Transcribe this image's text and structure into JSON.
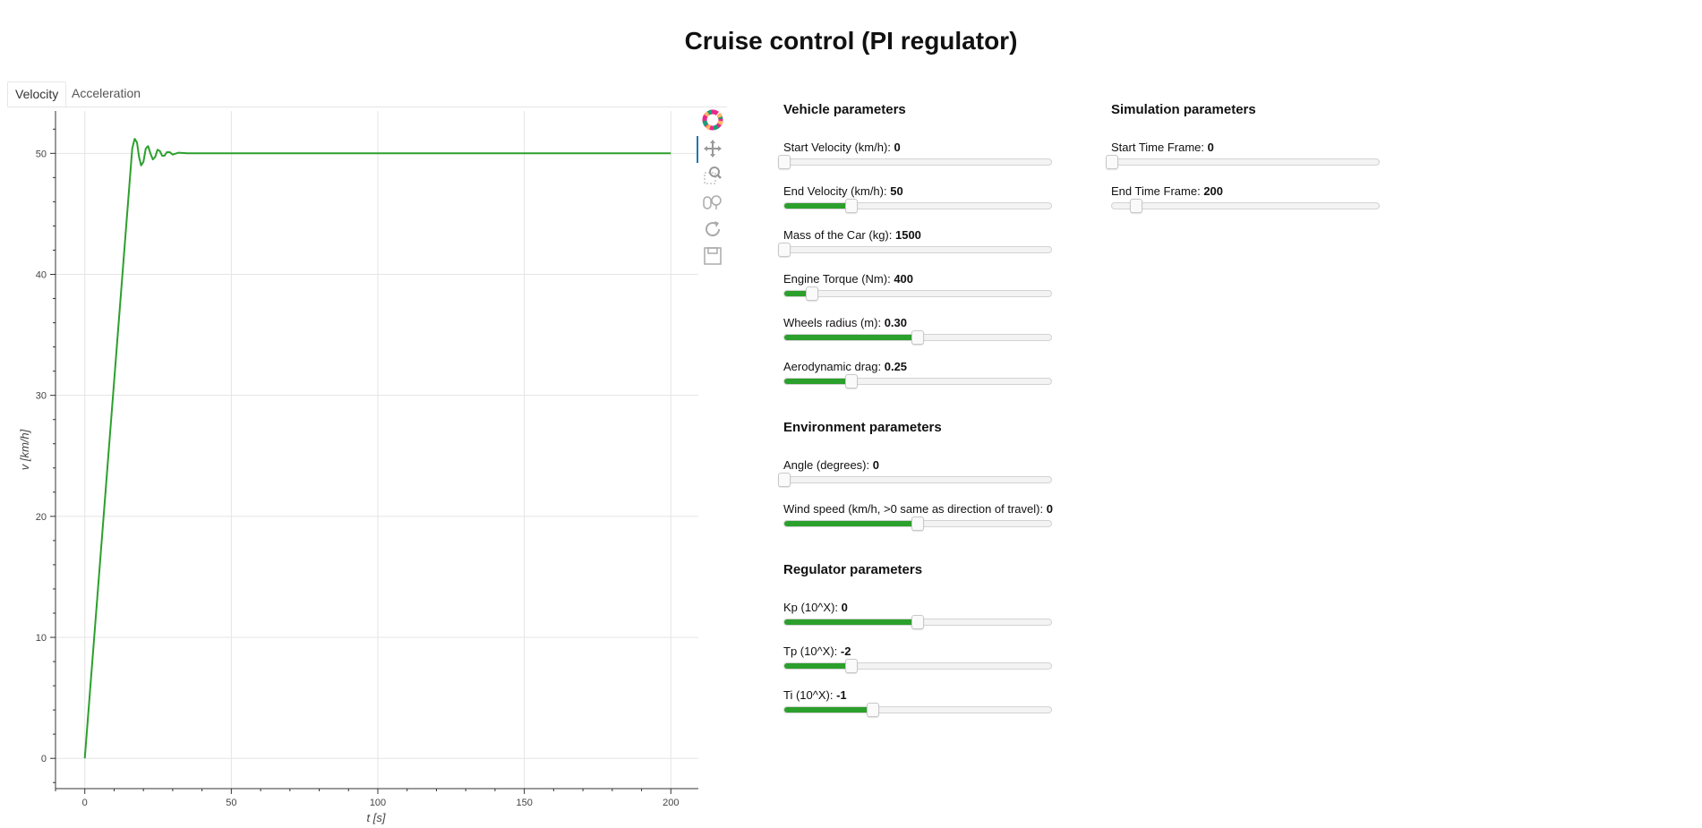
{
  "page": {
    "title": "Cruise control (PI regulator)"
  },
  "tabs": [
    {
      "label": "Velocity",
      "active": true
    },
    {
      "label": "Acceleration",
      "active": false
    }
  ],
  "toolbar": [
    "bokeh-logo",
    "pan-icon",
    "box-zoom-icon",
    "wheel-zoom-icon",
    "reset-icon",
    "save-icon"
  ],
  "colors": {
    "series": "#2ca02c",
    "grid": "#e5e5e5",
    "accent": "#1f77b4"
  },
  "chart_data": {
    "type": "line",
    "xlabel": "t [s]",
    "ylabel": "v [km/h]",
    "xlim": [
      -10,
      210
    ],
    "ylim": [
      -2.5,
      53.5
    ],
    "xticks": [
      0,
      50,
      100,
      150,
      200
    ],
    "yticks": [
      0,
      10,
      20,
      30,
      40,
      50
    ],
    "grid": true,
    "series": [
      {
        "color": "#2ca02c",
        "x": [
          0,
          16.2,
          17.0,
          17.8,
          18.5,
          19.2,
          20.0,
          20.8,
          21.6,
          22.4,
          23.2,
          24.0,
          24.8,
          25.6,
          26.4,
          27.2,
          28.0,
          29.0,
          30.0,
          32.0,
          35.0,
          40.0,
          200
        ],
        "y": [
          0,
          50.4,
          51.2,
          50.9,
          49.7,
          49.0,
          49.3,
          50.4,
          50.6,
          50.0,
          49.5,
          49.7,
          50.3,
          50.2,
          49.8,
          49.8,
          50.1,
          50.1,
          49.9,
          50.05,
          50.0,
          50.0,
          50.0
        ]
      }
    ]
  },
  "panels": {
    "vehicle": {
      "heading": "Vehicle parameters",
      "sliders": [
        {
          "label": "Start Velocity (km/h): ",
          "value": "0",
          "fraction": 0.0
        },
        {
          "label": "End Velocity (km/h): ",
          "value": "50",
          "fraction": 0.25
        },
        {
          "label": "Mass of the Car (kg): ",
          "value": "1500",
          "fraction": 0.0
        },
        {
          "label": "Engine Torque (Nm): ",
          "value": "400",
          "fraction": 0.105
        },
        {
          "label": "Wheels radius (m): ",
          "value": "0.30",
          "fraction": 0.5
        },
        {
          "label": "Aerodynamic drag: ",
          "value": "0.25",
          "fraction": 0.25
        }
      ]
    },
    "environment": {
      "heading": "Environment parameters",
      "sliders": [
        {
          "label": "Angle (degrees): ",
          "value": "0",
          "fraction": 0.0
        },
        {
          "label": "Wind speed (km/h, >0 same as direction of travel): ",
          "value": "0",
          "fraction": 0.5
        }
      ]
    },
    "regulator": {
      "heading": "Regulator parameters",
      "sliders": [
        {
          "label": "Kp (10^X): ",
          "value": "0",
          "fraction": 0.5
        },
        {
          "label": "Tp (10^X): ",
          "value": "-2",
          "fraction": 0.25
        },
        {
          "label": "Ti (10^X): ",
          "value": "-1",
          "fraction": 0.333
        }
      ]
    },
    "simulation": {
      "heading": "Simulation parameters",
      "sliders": [
        {
          "label": "Start Time Frame: ",
          "value": "0",
          "fraction": 0.0,
          "fill": false
        },
        {
          "label": "End Time Frame: ",
          "value": "200",
          "fraction": 0.09,
          "fill": false
        }
      ]
    }
  }
}
